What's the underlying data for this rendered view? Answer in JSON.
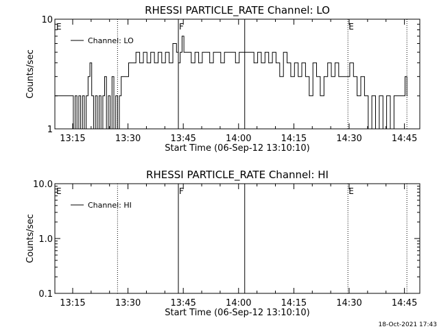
{
  "footer_timestamp": "18-Oct-2021 17:43",
  "colors": {
    "line": "#000000",
    "background": "#ffffff"
  },
  "chart_data": [
    {
      "type": "line",
      "title": "RHESSI PARTICLE_RATE Channel: LO",
      "xlabel": "Start Time (06-Sep-12 13:10:10)",
      "ylabel": "Counts/sec",
      "y_scale": "log",
      "ylim": [
        1,
        10
      ],
      "y_ticks": [
        1,
        10
      ],
      "y_tick_labels": [
        "1",
        "10"
      ],
      "xlim": [
        "13:10:10",
        "14:49:10"
      ],
      "x_ticks": [
        "13:15",
        "13:30",
        "13:45",
        "14:00",
        "14:15",
        "14:30",
        "14:45"
      ],
      "legend": {
        "label": "Channel: LO",
        "placement": "top-left"
      },
      "vlines": [
        {
          "time": "13:27:10",
          "style": "dotted",
          "label": ""
        },
        {
          "time": "13:43:40",
          "style": "solid",
          "label": "F"
        },
        {
          "time": "14:01:40",
          "style": "solid",
          "label": ""
        },
        {
          "time": "14:29:40",
          "style": "dotted",
          "label": "E"
        },
        {
          "time": "14:45:40",
          "style": "dotted",
          "label": ""
        }
      ],
      "corner_label": "E",
      "series": [
        {
          "name": "Channel: LO",
          "x": [
            "13:10:10",
            "13:14:40",
            "13:15:10",
            "13:15:40",
            "13:16:10",
            "13:16:40",
            "13:17:10",
            "13:17:40",
            "13:18:10",
            "13:18:40",
            "13:19:10",
            "13:19:40",
            "13:20:10",
            "13:20:40",
            "13:21:10",
            "13:21:40",
            "13:22:10",
            "13:22:40",
            "13:23:10",
            "13:23:40",
            "13:24:10",
            "13:24:40",
            "13:25:10",
            "13:25:40",
            "13:26:10",
            "13:26:40",
            "13:27:10",
            "13:27:40",
            "13:28:10",
            "13:28:40",
            "13:29:10",
            "13:29:40",
            "13:30:10",
            "13:31:10",
            "13:32:10",
            "13:33:10",
            "13:34:10",
            "13:35:10",
            "13:36:10",
            "13:37:10",
            "13:38:10",
            "13:39:10",
            "13:40:10",
            "13:41:10",
            "13:42:10",
            "13:43:10",
            "13:43:40",
            "13:44:10",
            "13:44:40",
            "13:45:10",
            "13:46:10",
            "13:47:10",
            "13:48:10",
            "13:49:10",
            "13:50:10",
            "13:51:10",
            "13:52:10",
            "13:53:10",
            "13:54:10",
            "13:55:10",
            "13:56:10",
            "13:57:10",
            "13:58:10",
            "13:59:10",
            "14:00:10",
            "14:01:10",
            "14:02:10",
            "14:03:10",
            "14:04:10",
            "14:05:10",
            "14:06:10",
            "14:07:10",
            "14:08:10",
            "14:09:10",
            "14:10:10",
            "14:11:10",
            "14:12:10",
            "14:13:10",
            "14:14:10",
            "14:15:10",
            "14:16:10",
            "14:17:10",
            "14:18:10",
            "14:19:10",
            "14:20:10",
            "14:21:10",
            "14:22:10",
            "14:23:10",
            "14:24:10",
            "14:25:10",
            "14:26:10",
            "14:27:10",
            "14:28:10",
            "14:29:10",
            "14:30:10",
            "14:31:10",
            "14:32:10",
            "14:33:10",
            "14:34:10",
            "14:35:10",
            "14:36:10",
            "14:37:10",
            "14:38:10",
            "14:39:10",
            "14:40:10",
            "14:41:10",
            "14:42:10",
            "14:43:10",
            "14:44:10",
            "14:45:10",
            "14:45:40"
          ],
          "values": [
            2,
            2,
            1,
            2,
            1,
            2,
            1,
            2,
            1,
            2,
            3,
            4,
            2,
            1,
            2,
            1,
            2,
            1,
            2,
            3,
            1,
            2,
            1,
            3,
            1,
            2,
            1,
            2,
            3,
            3,
            3,
            3,
            4,
            4,
            5,
            4,
            5,
            4,
            5,
            4,
            5,
            4,
            5,
            4,
            6,
            5,
            4,
            5,
            7,
            5,
            5,
            4,
            5,
            4,
            5,
            5,
            4,
            5,
            5,
            4,
            5,
            5,
            5,
            4,
            5,
            5,
            5,
            5,
            4,
            5,
            4,
            5,
            4,
            5,
            4,
            3,
            5,
            4,
            3,
            4,
            3,
            4,
            3,
            2,
            4,
            3,
            2,
            3,
            4,
            3,
            4,
            3,
            3,
            3,
            4,
            3,
            2,
            3,
            2,
            1,
            2,
            1,
            2,
            1,
            2,
            1,
            2,
            2,
            2,
            3,
            2
          ]
        }
      ]
    },
    {
      "type": "line",
      "title": "RHESSI PARTICLE_RATE Channel: HI",
      "xlabel": "Start Time (06-Sep-12 13:10:10)",
      "ylabel": "Counts/sec",
      "y_scale": "log",
      "ylim": [
        0.1,
        10
      ],
      "y_ticks": [
        0.1,
        1,
        10
      ],
      "y_tick_labels": [
        "0.1",
        "1.0",
        "10.0"
      ],
      "xlim": [
        "13:10:10",
        "14:49:10"
      ],
      "x_ticks": [
        "13:15",
        "13:30",
        "13:45",
        "14:00",
        "14:15",
        "14:30",
        "14:45"
      ],
      "legend": {
        "label": "Channel: HI",
        "placement": "top-left"
      },
      "vlines": [
        {
          "time": "13:27:10",
          "style": "dotted",
          "label": ""
        },
        {
          "time": "13:43:40",
          "style": "solid",
          "label": "F"
        },
        {
          "time": "14:01:40",
          "style": "solid",
          "label": ""
        },
        {
          "time": "14:29:40",
          "style": "dotted",
          "label": "E"
        },
        {
          "time": "14:45:40",
          "style": "dotted",
          "label": ""
        }
      ],
      "corner_label": "E",
      "series": [
        {
          "name": "Channel: HI",
          "x": [],
          "values": []
        }
      ]
    }
  ]
}
